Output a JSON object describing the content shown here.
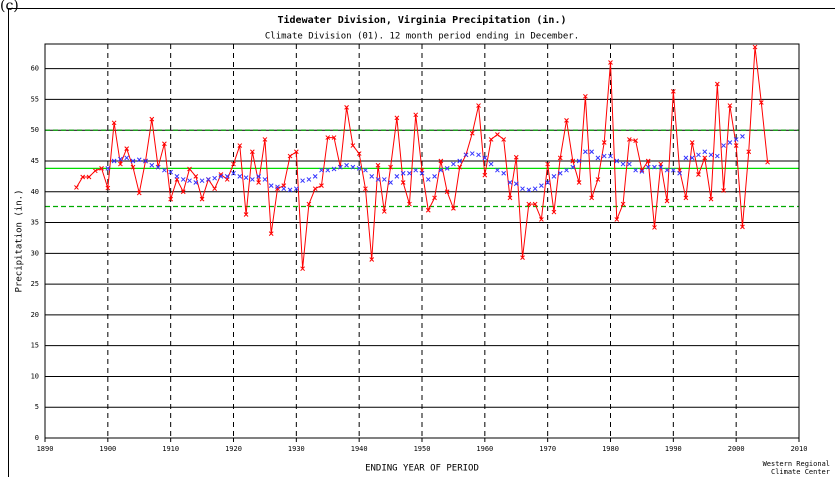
{
  "chart_data": {
    "type": "line",
    "corner_mark": "(c)",
    "title": "Tidewater Division, Virginia  Precipitation (in.)",
    "subtitle": "Climate Division (01). 12 month period ending in December.",
    "xlabel": "ENDING YEAR OF PERIOD",
    "ylabel": "Precipitation (in.)",
    "source": [
      "Western Regional",
      "Climate Center"
    ],
    "xlim": [
      1890,
      2010
    ],
    "xticks": [
      1890,
      1900,
      1910,
      1920,
      1930,
      1940,
      1950,
      1960,
      1970,
      1980,
      1990,
      2000,
      2010
    ],
    "ylim": [
      0,
      64
    ],
    "yticks": [
      0,
      5,
      10,
      15,
      20,
      25,
      30,
      35,
      40,
      45,
      50,
      55,
      60
    ],
    "grid": true,
    "reference_lines": [
      {
        "value": 43.8,
        "color": "#00dd00",
        "dashed": false
      },
      {
        "value": 50.0,
        "color": "#00aa00",
        "dashed": true
      },
      {
        "value": 37.6,
        "color": "#00aa00",
        "dashed": true
      }
    ],
    "series": [
      {
        "color": "#ff0000",
        "line": true,
        "x": [
          1895,
          1896,
          1897,
          1898,
          1899,
          1900,
          1901,
          1902,
          1903,
          1904,
          1905,
          1906,
          1907,
          1908,
          1909,
          1910,
          1911,
          1912,
          1913,
          1914,
          1915,
          1916,
          1917,
          1918,
          1919,
          1920,
          1921,
          1922,
          1923,
          1924,
          1925,
          1926,
          1927,
          1928,
          1929,
          1930,
          1931,
          1932,
          1933,
          1934,
          1935,
          1936,
          1937,
          1938,
          1939,
          1940,
          1941,
          1942,
          1943,
          1944,
          1945,
          1946,
          1947,
          1948,
          1949,
          1950,
          1951,
          1952,
          1953,
          1954,
          1955,
          1956,
          1957,
          1958,
          1959,
          1960,
          1961,
          1962,
          1963,
          1964,
          1965,
          1966,
          1967,
          1968,
          1969,
          1970,
          1971,
          1972,
          1973,
          1974,
          1975,
          1976,
          1977,
          1978,
          1979,
          1980,
          1981,
          1982,
          1983,
          1984,
          1985,
          1986,
          1987,
          1988,
          1989,
          1990,
          1991,
          1992,
          1993,
          1994,
          1995,
          1996,
          1997,
          1998,
          1999,
          2000,
          2001,
          2002,
          2003,
          2004,
          2005
        ],
        "values": [
          40.7,
          42.4,
          42.4,
          43.4,
          43.8,
          40.6,
          51.2,
          44.5,
          47.0,
          44.0,
          39.8,
          45.0,
          51.8,
          44.0,
          47.8,
          38.8,
          42.0,
          40.0,
          43.7,
          42.5,
          38.8,
          42.0,
          40.5,
          42.8,
          42.0,
          44.5,
          47.5,
          36.3,
          46.5,
          41.5,
          48.5,
          33.2,
          40.5,
          41.0,
          45.8,
          46.5,
          27.5,
          38.0,
          40.5,
          41.0,
          48.8,
          48.8,
          44.0,
          53.7,
          47.5,
          46.2,
          40.5,
          29.0,
          44.3,
          36.8,
          44.0,
          52.0,
          41.5,
          38.0,
          52.5,
          43.5,
          37.0,
          39.0,
          45.0,
          40.0,
          37.3,
          44.0,
          46.0,
          49.5,
          54.0,
          42.7,
          48.5,
          49.3,
          48.5,
          39.0,
          45.6,
          29.3,
          38.0,
          38.0,
          35.5,
          44.5,
          36.7,
          45.5,
          51.6,
          45.0,
          41.5,
          55.5,
          39.0,
          42.0,
          48.0,
          61.0,
          35.5,
          38.0,
          48.5,
          48.3,
          43.5,
          45.0,
          34.2,
          44.5,
          38.5,
          56.3,
          43.5,
          39.0,
          48.0,
          42.8,
          45.5,
          38.8,
          57.5,
          40.2,
          54.0,
          47.5,
          34.3,
          46.5,
          63.5,
          54.5,
          44.8
        ]
      },
      {
        "color": "#3333ff",
        "line": false,
        "x": [
          1900,
          1901,
          1902,
          1903,
          1904,
          1905,
          1906,
          1907,
          1908,
          1909,
          1910,
          1911,
          1912,
          1913,
          1914,
          1915,
          1916,
          1917,
          1918,
          1919,
          1920,
          1921,
          1922,
          1923,
          1924,
          1925,
          1926,
          1927,
          1928,
          1929,
          1930,
          1931,
          1932,
          1933,
          1934,
          1935,
          1936,
          1937,
          1938,
          1939,
          1940,
          1941,
          1942,
          1943,
          1944,
          1945,
          1946,
          1947,
          1948,
          1949,
          1950,
          1951,
          1952,
          1953,
          1954,
          1955,
          1956,
          1957,
          1958,
          1959,
          1960,
          1961,
          1962,
          1963,
          1964,
          1965,
          1966,
          1967,
          1968,
          1969,
          1970,
          1971,
          1972,
          1973,
          1974,
          1975,
          1976,
          1977,
          1978,
          1979,
          1980,
          1981,
          1982,
          1983,
          1984,
          1985,
          1986,
          1987,
          1988,
          1989,
          1990,
          1991,
          1992,
          1993,
          1994,
          1995,
          1996,
          1997,
          1998,
          1999,
          2000,
          2001
        ],
        "values": [
          43.8,
          45,
          45.3,
          45.5,
          45,
          45.2,
          45,
          44.3,
          44,
          43.5,
          43.2,
          42.5,
          42,
          41.8,
          41.5,
          41.8,
          42,
          42.2,
          42.5,
          42.5,
          43,
          42.5,
          42.3,
          42,
          42.5,
          42,
          41,
          40.8,
          40.5,
          40.3,
          40.5,
          41.8,
          42,
          42.5,
          43.5,
          43.5,
          43.7,
          44,
          44.3,
          44,
          43.8,
          43.5,
          42.5,
          42,
          42,
          41.5,
          42.5,
          43,
          43,
          43.5,
          43,
          42,
          42.5,
          43.5,
          43.8,
          44.5,
          45,
          46,
          46.2,
          46,
          45.5,
          44.5,
          43.5,
          43,
          41.5,
          41.3,
          40.5,
          40.3,
          40.5,
          41,
          41.5,
          42.5,
          43,
          43.5,
          44,
          45,
          46.5,
          46.5,
          45.5,
          45.8,
          45.8,
          45,
          44.5,
          44.5,
          43.5,
          43.3,
          44,
          44,
          44,
          43.5,
          43.5,
          43,
          45.5,
          45.5,
          46,
          46.5,
          46,
          45.8,
          47.5,
          48,
          48.5,
          49
        ]
      }
    ]
  }
}
